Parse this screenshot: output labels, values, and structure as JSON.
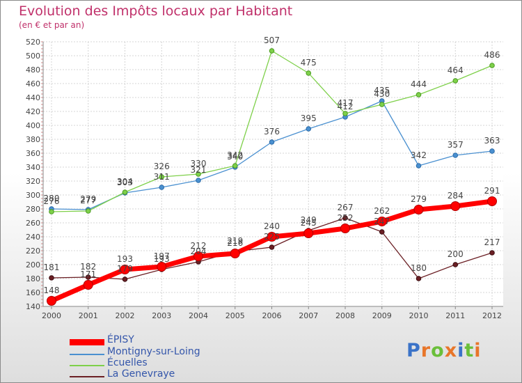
{
  "chart_data": {
    "type": "line",
    "title": "Evolution des Impôts locaux par Habitant",
    "subtitle": "(en € et par an)",
    "xlabel": "",
    "ylabel": "",
    "ylim": [
      140,
      520
    ],
    "yticks": [
      140,
      160,
      180,
      200,
      220,
      240,
      260,
      280,
      300,
      320,
      340,
      360,
      380,
      400,
      420,
      440,
      460,
      480,
      500,
      520
    ],
    "grid": true,
    "categories": [
      "2000",
      "2001",
      "2002",
      "2003",
      "2004",
      "2005",
      "2006",
      "2007",
      "2008",
      "2009",
      "2010",
      "2011",
      "2012"
    ],
    "series": [
      {
        "name": "ÉPISY",
        "color": "#ff0000",
        "values": [
          148,
          171,
          193,
          197,
          212,
          216,
          240,
          245,
          252,
          262,
          279,
          284,
          291
        ]
      },
      {
        "name": "Montigny-sur-Loing",
        "color": "#4a90d0",
        "values": [
          280,
          279,
          303,
          311,
          321,
          340,
          376,
          395,
          412,
          435,
          342,
          357,
          363
        ]
      },
      {
        "name": "Écuelles",
        "color": "#7ed04a",
        "values": [
          276,
          277,
          304,
          326,
          330,
          342,
          507,
          475,
          417,
          430,
          444,
          464,
          486
        ]
      },
      {
        "name": "La Genevraye",
        "color": "#6b1f24",
        "values": [
          181,
          182,
          179,
          193,
          204,
          219,
          225,
          249,
          267,
          247,
          180,
          200,
          217
        ]
      }
    ],
    "legend_position": "bottom-left"
  },
  "brand": {
    "letters": [
      "P",
      "r",
      "o",
      "x",
      "i",
      "t",
      "i"
    ],
    "colors": [
      "#3b73c8",
      "#e8762a",
      "#6abf3a",
      "#e8762a",
      "#3b73c8",
      "#6abf3a",
      "#e8762a"
    ]
  }
}
